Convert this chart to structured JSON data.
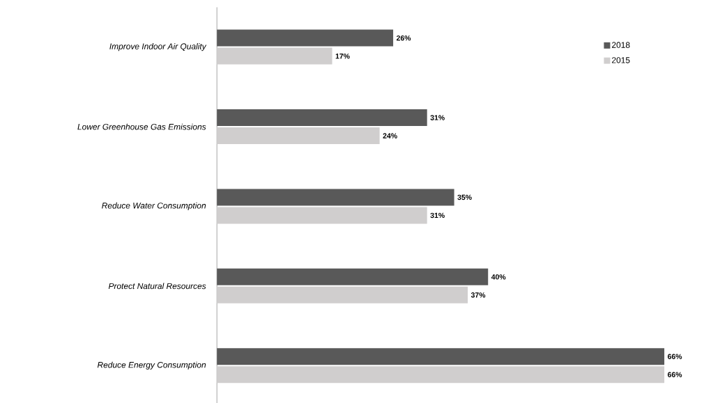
{
  "chart_data": {
    "type": "bar",
    "orientation": "horizontal",
    "categories": [
      "Improve Indoor Air Quality",
      "Lower Greenhouse Gas Emissions",
      "Reduce Water Consumption",
      "Protect Natural Resources",
      "Reduce Energy Consumption"
    ],
    "series": [
      {
        "name": "2018",
        "color": "#595959",
        "values": [
          26,
          31,
          35,
          40,
          66
        ],
        "value_labels": [
          "26%",
          "31%",
          "35%",
          "40%",
          "66%"
        ]
      },
      {
        "name": "2015",
        "color": "#d0cece",
        "values": [
          17,
          24,
          31,
          37,
          66
        ],
        "value_labels": [
          "17%",
          "24%",
          "31%",
          "37%",
          "66%"
        ]
      }
    ],
    "legend": "top right"
  }
}
